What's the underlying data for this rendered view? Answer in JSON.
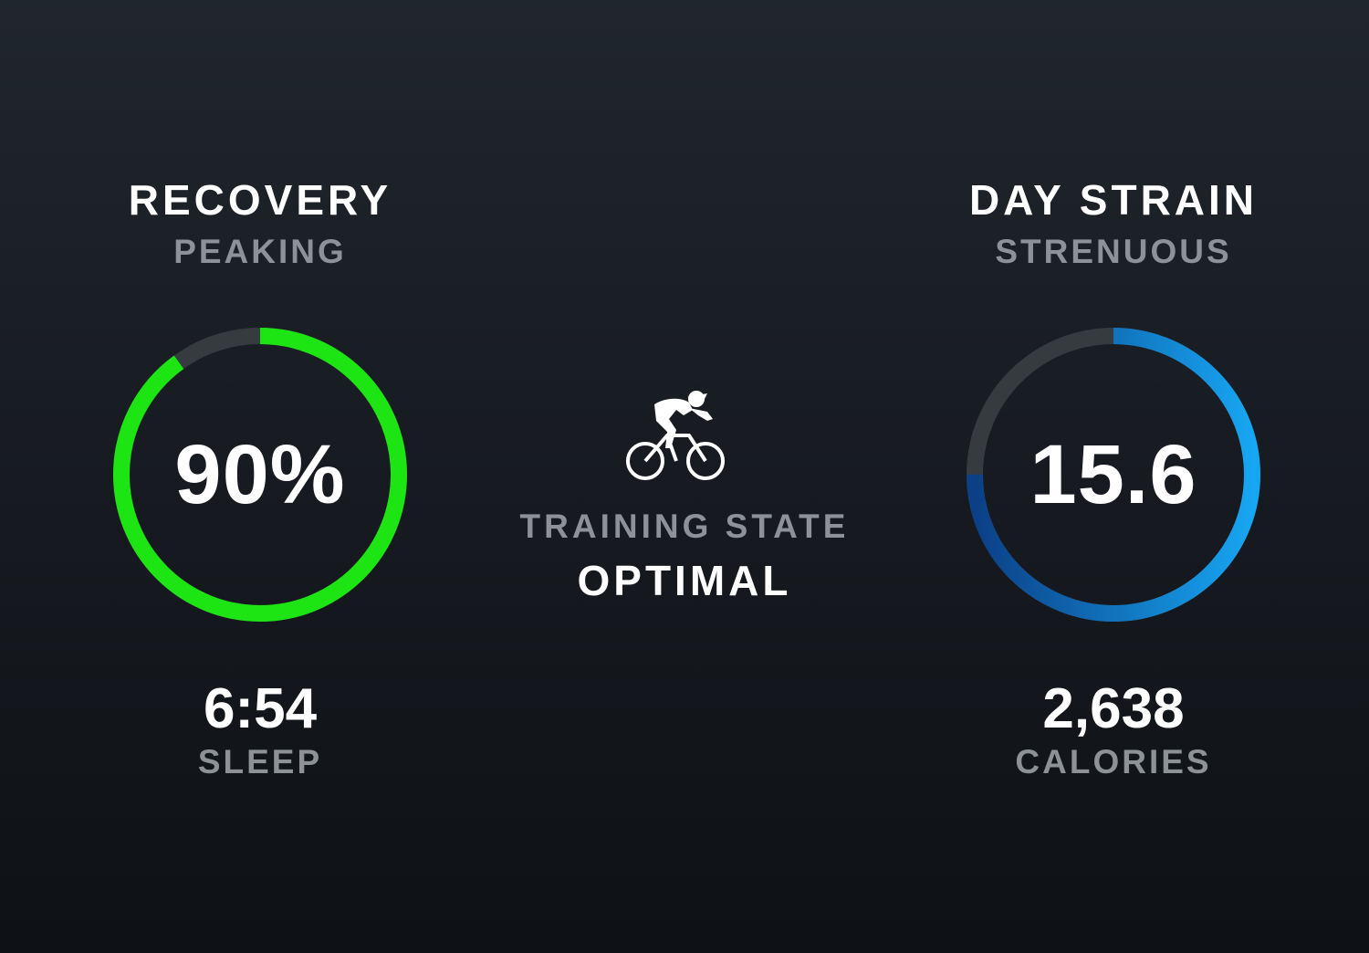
{
  "recovery": {
    "title": "RECOVERY",
    "status": "PEAKING",
    "value_text": "90%",
    "fraction": 0.9,
    "color": "#1de514",
    "track_color": "#363b40"
  },
  "sleep": {
    "value": "6:54",
    "label": "SLEEP"
  },
  "training_state": {
    "icon": "cyclist-icon",
    "label": "TRAINING STATE",
    "value": "OPTIMAL"
  },
  "day_strain": {
    "title": "DAY STRAIN",
    "status": "STRENUOUS",
    "value_text": "15.6",
    "fraction": 0.75,
    "color_start": "#0b3f86",
    "color_end": "#17a6f2",
    "track_color": "#363b40"
  },
  "calories": {
    "value": "2,638",
    "label": "CALORIES"
  }
}
